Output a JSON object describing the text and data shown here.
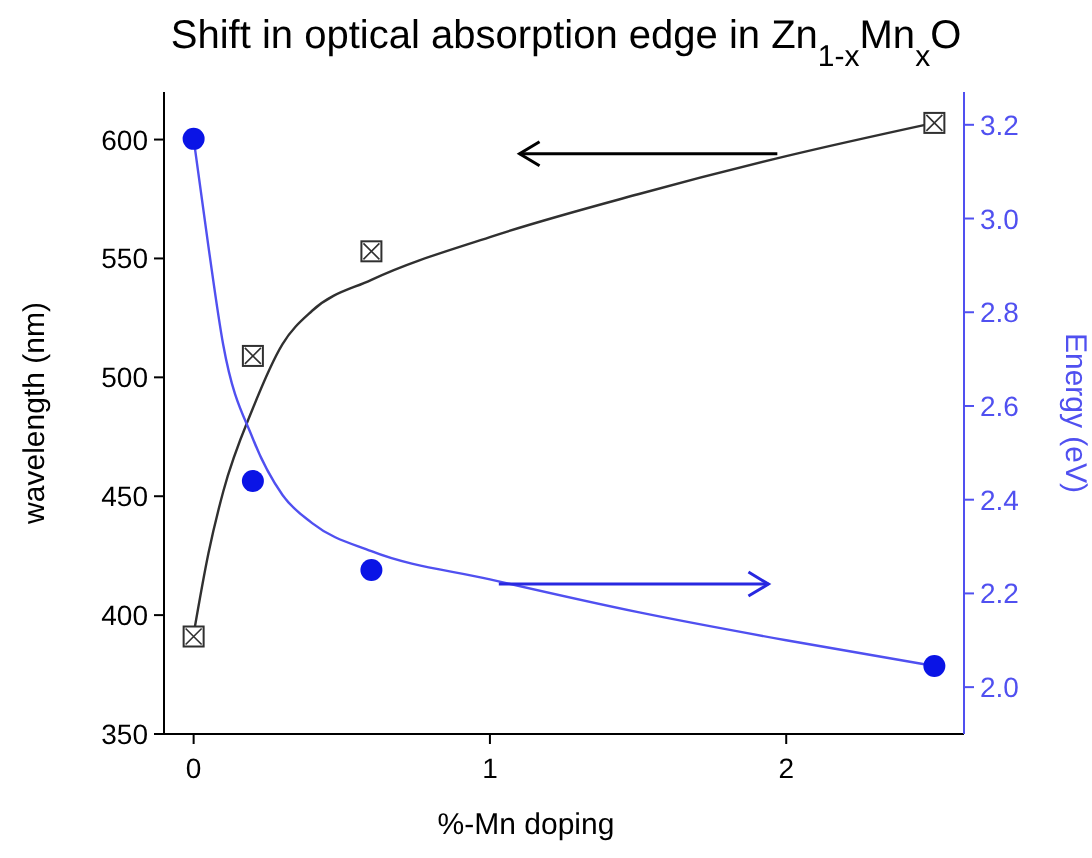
{
  "chart_data": {
    "type": "scatter",
    "title": "Shift in optical absorption edge in Zn$_{1-x}$Mn$_{x}$O",
    "xlabel": "%-Mn doping",
    "ylabel": "wavelength (nm)",
    "y2label": "Energy (eV)",
    "xlim": [
      -0.1,
      2.6
    ],
    "xticks": [
      0,
      1,
      2
    ],
    "ylim": [
      350,
      620
    ],
    "yticks": [
      350,
      400,
      450,
      500,
      550,
      600
    ],
    "y2lim": [
      1.9,
      3.27
    ],
    "y2ticks": [
      {
        "value": 2,
        "label": "2.0"
      },
      2.2,
      2.4,
      2.6,
      2.8,
      {
        "value": 3,
        "label": "3.0"
      },
      3.2
    ],
    "grid": false,
    "series": [
      {
        "type": "line",
        "color": "#303030",
        "marker": "none",
        "x": [
          0,
          0.05,
          0.1,
          0.2,
          0.3,
          0.4,
          0.6,
          1,
          1.5,
          2,
          2.5
        ],
        "values": [
          392,
          426,
          452,
          487,
          514,
          528,
          541,
          559,
          577,
          593,
          607
        ]
      },
      {
        "type": "line",
        "color": "#5050f0",
        "axis": "y2",
        "marker": "none",
        "x": [
          0,
          0.05,
          0.1,
          0.2,
          0.3,
          0.4,
          0.6,
          1,
          1.5,
          2,
          2.5
        ],
        "values": [
          3.17,
          2.94,
          2.73,
          2.53,
          2.41,
          2.35,
          2.29,
          2.23,
          2.16,
          2.1,
          2.045
        ]
      },
      {
        "color": "#303030",
        "marker": "square",
        "x": [
          0,
          0.2,
          0.6,
          2.5
        ],
        "values": [
          391,
          509,
          553,
          607
        ]
      },
      {
        "color": "#0a14e6",
        "marker": "circle",
        "axis": "y2",
        "x": [
          0,
          0.2,
          0.6,
          2.5
        ],
        "values": [
          3.17,
          2.44,
          2.25,
          2.045
        ]
      }
    ]
  }
}
